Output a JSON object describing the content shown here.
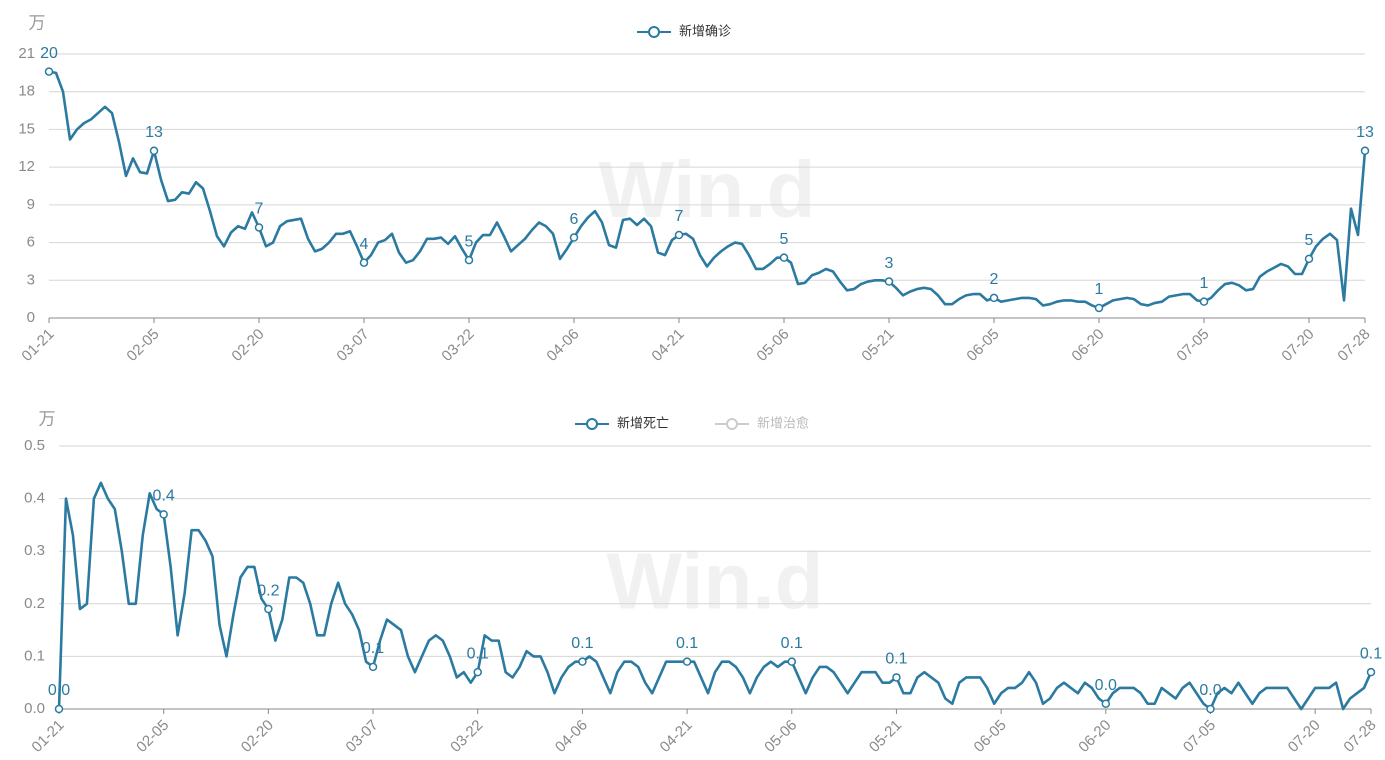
{
  "chart_data": [
    {
      "type": "line",
      "y_label": "万",
      "watermark": "Win.d",
      "categories": [
        "01-21",
        null,
        null,
        null,
        null,
        null,
        null,
        null,
        null,
        null,
        null,
        null,
        null,
        null,
        null,
        "02-05",
        null,
        null,
        null,
        null,
        null,
        null,
        null,
        null,
        null,
        null,
        null,
        null,
        null,
        null,
        "02-20",
        null,
        null,
        null,
        null,
        null,
        null,
        null,
        null,
        null,
        null,
        null,
        null,
        null,
        null,
        "03-07",
        null,
        null,
        null,
        null,
        null,
        null,
        null,
        null,
        null,
        null,
        null,
        null,
        null,
        null,
        "03-22",
        null,
        null,
        null,
        null,
        null,
        null,
        null,
        null,
        null,
        null,
        null,
        null,
        null,
        null,
        "04-06",
        null,
        null,
        null,
        null,
        null,
        null,
        null,
        null,
        null,
        null,
        null,
        null,
        null,
        null,
        "04-21",
        null,
        null,
        null,
        null,
        null,
        null,
        null,
        null,
        null,
        null,
        null,
        null,
        null,
        null,
        "05-06",
        null,
        null,
        null,
        null,
        null,
        null,
        null,
        null,
        null,
        null,
        null,
        null,
        null,
        null,
        "05-21",
        null,
        null,
        null,
        null,
        null,
        null,
        null,
        null,
        null,
        null,
        null,
        null,
        null,
        null,
        "06-05",
        null,
        null,
        null,
        null,
        null,
        null,
        null,
        null,
        null,
        null,
        null,
        null,
        null,
        null,
        "06-20",
        null,
        null,
        null,
        null,
        null,
        null,
        null,
        null,
        null,
        null,
        null,
        null,
        null,
        null,
        "07-05",
        null,
        null,
        null,
        null,
        null,
        null,
        null,
        null,
        null,
        null,
        null,
        null,
        null,
        null,
        "07-20",
        null,
        null,
        null,
        null,
        null,
        null,
        null,
        "07-28"
      ],
      "series": [
        {
          "name": "新增确诊",
          "color": "#2b7aa1",
          "values": [
            19.6,
            19.5,
            18,
            14.2,
            15,
            15.5,
            15.8,
            16.3,
            16.8,
            16.3,
            14,
            11.3,
            12.7,
            11.6,
            11.5,
            13.3,
            11,
            9.3,
            9.4,
            10,
            9.9,
            10.8,
            10.3,
            8.5,
            6.5,
            5.7,
            6.8,
            7.3,
            7.1,
            8.4,
            7.2,
            5.7,
            6,
            7.3,
            7.7,
            7.8,
            7.9,
            6.3,
            5.3,
            5.5,
            6,
            6.7,
            6.7,
            6.9,
            5.7,
            4.4,
            5,
            6,
            6.2,
            6.7,
            5.2,
            4.4,
            4.6,
            5.3,
            6.3,
            6.3,
            6.4,
            5.9,
            6.5,
            5.5,
            4.6,
            6,
            6.6,
            6.6,
            7.6,
            6.5,
            5.3,
            5.8,
            6.3,
            7,
            7.6,
            7.3,
            6.7,
            4.7,
            5.5,
            6.4,
            7.3,
            8,
            8.5,
            7.6,
            5.8,
            5.6,
            7.8,
            7.9,
            7.4,
            7.9,
            7.3,
            5.2,
            5,
            6.2,
            6.6,
            6.7,
            6.3,
            5,
            4.1,
            4.8,
            5.3,
            5.7,
            6,
            5.9,
            5,
            3.9,
            3.9,
            4.3,
            4.8,
            4.8,
            4.4,
            2.7,
            2.8,
            3.4,
            3.6,
            3.9,
            3.7,
            2.9,
            2.2,
            2.3,
            2.7,
            2.9,
            3,
            3,
            2.9,
            2.4,
            1.8,
            2.1,
            2.3,
            2.4,
            2.3,
            1.8,
            1.1,
            1.1,
            1.5,
            1.8,
            1.9,
            1.9,
            1.4,
            1.6,
            1.3,
            1.4,
            1.5,
            1.6,
            1.6,
            1.5,
            1,
            1.1,
            1.3,
            1.4,
            1.4,
            1.3,
            1.3,
            1,
            0.8,
            1.1,
            1.4,
            1.5,
            1.6,
            1.5,
            1.1,
            1,
            1.2,
            1.3,
            1.7,
            1.8,
            1.9,
            1.9,
            1.4,
            1.3,
            1.6,
            2.2,
            2.7,
            2.8,
            2.6,
            2.2,
            2.3,
            3.3,
            3.7,
            4,
            4.3,
            4.1,
            3.5,
            3.5,
            4.7,
            5.7,
            6.3,
            6.7,
            6.2,
            1.4,
            8.7,
            6.6,
            13.3
          ],
          "value_labels": [
            "20",
            null,
            null,
            null,
            null,
            null,
            null,
            null,
            null,
            null,
            null,
            null,
            null,
            null,
            null,
            "13",
            null,
            null,
            null,
            null,
            null,
            null,
            null,
            null,
            null,
            null,
            null,
            null,
            null,
            null,
            "7",
            null,
            null,
            null,
            null,
            null,
            null,
            null,
            null,
            null,
            null,
            null,
            null,
            null,
            null,
            "4",
            null,
            null,
            null,
            null,
            null,
            null,
            null,
            null,
            null,
            null,
            null,
            null,
            null,
            null,
            "5",
            null,
            null,
            null,
            null,
            null,
            null,
            null,
            null,
            null,
            null,
            null,
            null,
            null,
            null,
            "6",
            null,
            null,
            null,
            null,
            null,
            null,
            null,
            null,
            null,
            null,
            null,
            null,
            null,
            null,
            "7",
            null,
            null,
            null,
            null,
            null,
            null,
            null,
            null,
            null,
            null,
            null,
            null,
            null,
            null,
            "5",
            null,
            null,
            null,
            null,
            null,
            null,
            null,
            null,
            null,
            null,
            null,
            null,
            null,
            null,
            "3",
            null,
            null,
            null,
            null,
            null,
            null,
            null,
            null,
            null,
            null,
            null,
            null,
            null,
            null,
            "2",
            null,
            null,
            null,
            null,
            null,
            null,
            null,
            null,
            null,
            null,
            null,
            null,
            null,
            null,
            "1",
            null,
            null,
            null,
            null,
            null,
            null,
            null,
            null,
            null,
            null,
            null,
            null,
            null,
            null,
            "1",
            null,
            null,
            null,
            null,
            null,
            null,
            null,
            null,
            null,
            null,
            null,
            null,
            null,
            null,
            "5",
            null,
            null,
            null,
            null,
            null,
            null,
            null,
            "13"
          ]
        }
      ],
      "ylim": [
        0,
        21
      ],
      "yticks": [
        0,
        3,
        6,
        9,
        12,
        15,
        18,
        21
      ],
      "grid": true
    },
    {
      "type": "line",
      "y_label": "万",
      "watermark": "Win.d",
      "categories": [
        "01-21",
        null,
        null,
        null,
        null,
        null,
        null,
        null,
        null,
        null,
        null,
        null,
        null,
        null,
        null,
        "02-05",
        null,
        null,
        null,
        null,
        null,
        null,
        null,
        null,
        null,
        null,
        null,
        null,
        null,
        null,
        "02-20",
        null,
        null,
        null,
        null,
        null,
        null,
        null,
        null,
        null,
        null,
        null,
        null,
        null,
        null,
        "03-07",
        null,
        null,
        null,
        null,
        null,
        null,
        null,
        null,
        null,
        null,
        null,
        null,
        null,
        null,
        "03-22",
        null,
        null,
        null,
        null,
        null,
        null,
        null,
        null,
        null,
        null,
        null,
        null,
        null,
        null,
        "04-06",
        null,
        null,
        null,
        null,
        null,
        null,
        null,
        null,
        null,
        null,
        null,
        null,
        null,
        null,
        "04-21",
        null,
        null,
        null,
        null,
        null,
        null,
        null,
        null,
        null,
        null,
        null,
        null,
        null,
        null,
        "05-06",
        null,
        null,
        null,
        null,
        null,
        null,
        null,
        null,
        null,
        null,
        null,
        null,
        null,
        null,
        "05-21",
        null,
        null,
        null,
        null,
        null,
        null,
        null,
        null,
        null,
        null,
        null,
        null,
        null,
        null,
        "06-05",
        null,
        null,
        null,
        null,
        null,
        null,
        null,
        null,
        null,
        null,
        null,
        null,
        null,
        null,
        "06-20",
        null,
        null,
        null,
        null,
        null,
        null,
        null,
        null,
        null,
        null,
        null,
        null,
        null,
        null,
        "07-05",
        null,
        null,
        null,
        null,
        null,
        null,
        null,
        null,
        null,
        null,
        null,
        null,
        null,
        null,
        "07-20",
        null,
        null,
        null,
        null,
        null,
        null,
        null,
        "07-28"
      ],
      "series": [
        {
          "name": "新增死亡",
          "color": "#2b7aa1",
          "values": [
            0,
            0.4,
            0.33,
            0.19,
            0.2,
            0.4,
            0.43,
            0.4,
            0.38,
            0.3,
            0.2,
            0.2,
            0.33,
            0.41,
            0.38,
            0.37,
            0.27,
            0.14,
            0.22,
            0.34,
            0.34,
            0.32,
            0.29,
            0.16,
            0.1,
            0.18,
            0.25,
            0.27,
            0.27,
            0.21,
            0.19,
            0.13,
            0.17,
            0.25,
            0.25,
            0.24,
            0.2,
            0.14,
            0.14,
            0.2,
            0.24,
            0.2,
            0.18,
            0.15,
            0.09,
            0.08,
            0.13,
            0.17,
            0.16,
            0.15,
            0.1,
            0.07,
            0.1,
            0.13,
            0.14,
            0.13,
            0.1,
            0.06,
            0.07,
            0.05,
            0.07,
            0.14,
            0.13,
            0.13,
            0.07,
            0.06,
            0.08,
            0.11,
            0.1,
            0.1,
            0.07,
            0.03,
            0.06,
            0.08,
            0.09,
            0.09,
            0.1,
            0.09,
            0.06,
            0.03,
            0.07,
            0.09,
            0.09,
            0.08,
            0.05,
            0.03,
            0.06,
            0.09,
            0.09,
            0.09,
            0.09,
            0.09,
            0.06,
            0.03,
            0.07,
            0.09,
            0.09,
            0.08,
            0.06,
            0.03,
            0.06,
            0.08,
            0.09,
            0.08,
            0.09,
            0.09,
            0.06,
            0.03,
            0.06,
            0.08,
            0.08,
            0.07,
            0.05,
            0.03,
            0.05,
            0.07,
            0.07,
            0.07,
            0.05,
            0.05,
            0.06,
            0.03,
            0.03,
            0.06,
            0.07,
            0.06,
            0.05,
            0.02,
            0.01,
            0.05,
            0.06,
            0.06,
            0.06,
            0.04,
            0.01,
            0.03,
            0.04,
            0.04,
            0.05,
            0.07,
            0.05,
            0.01,
            0.02,
            0.04,
            0.05,
            0.04,
            0.03,
            0.05,
            0.04,
            0.02,
            0.01,
            0.03,
            0.04,
            0.04,
            0.04,
            0.03,
            0.01,
            0.01,
            0.04,
            0.03,
            0.02,
            0.04,
            0.05,
            0.03,
            0.01,
            0,
            0.03,
            0.04,
            0.03,
            0.05,
            0.03,
            0.01,
            0.03,
            0.04,
            0.04,
            0.04,
            0.04,
            0.02,
            0,
            0.02,
            0.04,
            0.04,
            0.04,
            0.05,
            0,
            0.02,
            0.03,
            0.04,
            0.07
          ],
          "value_labels": [
            "0.0",
            null,
            null,
            null,
            null,
            null,
            null,
            null,
            null,
            null,
            null,
            null,
            null,
            null,
            null,
            "0.4",
            null,
            null,
            null,
            null,
            null,
            null,
            null,
            null,
            null,
            null,
            null,
            null,
            null,
            null,
            "0.2",
            null,
            null,
            null,
            null,
            null,
            null,
            null,
            null,
            null,
            null,
            null,
            null,
            null,
            null,
            "0.1",
            null,
            null,
            null,
            null,
            null,
            null,
            null,
            null,
            null,
            null,
            null,
            null,
            null,
            null,
            "0.1",
            null,
            null,
            null,
            null,
            null,
            null,
            null,
            null,
            null,
            null,
            null,
            null,
            null,
            null,
            "0.1",
            null,
            null,
            null,
            null,
            null,
            null,
            null,
            null,
            null,
            null,
            null,
            null,
            null,
            null,
            "0.1",
            null,
            null,
            null,
            null,
            null,
            null,
            null,
            null,
            null,
            null,
            null,
            null,
            null,
            null,
            "0.1",
            null,
            null,
            null,
            null,
            null,
            null,
            null,
            null,
            null,
            null,
            null,
            null,
            null,
            null,
            "0.1",
            null,
            null,
            null,
            null,
            null,
            null,
            null,
            null,
            null,
            null,
            null,
            null,
            null,
            null,
            null,
            null,
            null,
            null,
            null,
            null,
            null,
            null,
            null,
            null,
            null,
            null,
            null,
            null,
            null,
            "0.0",
            null,
            null,
            null,
            null,
            null,
            null,
            null,
            null,
            null,
            null,
            null,
            null,
            null,
            null,
            "0.0",
            null,
            null,
            null,
            null,
            null,
            null,
            null,
            null,
            null,
            null,
            null,
            null,
            null,
            null,
            null,
            null,
            null,
            null,
            null,
            null,
            null,
            null,
            "0.1"
          ]
        }
      ],
      "hidden_series": [
        {
          "name": "新增治愈",
          "color": "#cccccc"
        }
      ],
      "ylim": [
        0,
        0.5
      ],
      "yticks": [
        {
          "value": 0,
          "label": "0.0"
        },
        0.1,
        0.2,
        0.3,
        0.4,
        0.5
      ],
      "grid": true
    }
  ]
}
